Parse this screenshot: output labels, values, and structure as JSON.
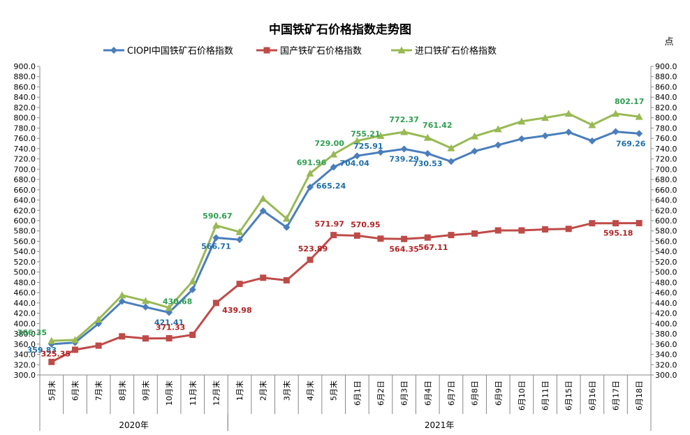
{
  "chart_data": {
    "type": "line",
    "title": "中国铁矿石价格指数走势图",
    "right_axis_unit": "点",
    "ylim": [
      300,
      900
    ],
    "ystep": 20,
    "grid": false,
    "legend_position": "top",
    "categories": [
      "5月末",
      "6月末",
      "7月末",
      "8月末",
      "9月末",
      "10月末",
      "11月末",
      "12月末",
      "1月末",
      "2月末",
      "3月末",
      "4月末",
      "5月末",
      "6月1日",
      "6月2日",
      "6月3日",
      "6月4日",
      "6月7日",
      "6月8日",
      "6月9日",
      "6月10日",
      "6月11日",
      "6月15日",
      "6月16日",
      "6月17日",
      "6月18日"
    ],
    "year_groups": [
      {
        "label": "2020年",
        "count": 8
      },
      {
        "label": "2021年",
        "count": 18
      }
    ],
    "series": [
      {
        "name": "CIOPI中国铁矿石价格指数",
        "color": "#4A7EBB",
        "marker": "diamond",
        "values": [
          359.83,
          363,
          400,
          443,
          432,
          421.41,
          466,
          566.71,
          563,
          619,
          587,
          665.24,
          704.04,
          725.91,
          733,
          739.29,
          730.53,
          715,
          735,
          747,
          759,
          765,
          772,
          755,
          773,
          769.26
        ]
      },
      {
        "name": "国产铁矿石价格指数",
        "color": "#BE4B48",
        "marker": "square",
        "values": [
          325.35,
          349,
          357,
          375,
          371,
          371.33,
          378,
          439.98,
          477,
          489,
          484,
          523.89,
          571.97,
          570.95,
          565,
          564.35,
          567.11,
          572,
          575,
          581,
          581,
          583,
          584,
          595,
          595,
          595.18
        ]
      },
      {
        "name": "进口铁矿石价格指数",
        "color": "#98B954",
        "marker": "triangle",
        "values": [
          366.35,
          368,
          408,
          455,
          444,
          430.68,
          482,
          590.67,
          578,
          643,
          604,
          691.96,
          729.0,
          755.21,
          765,
          772.37,
          761.42,
          741,
          764,
          778,
          793,
          800,
          808,
          786,
          808,
          802.17
        ]
      }
    ],
    "data_labels": [
      {
        "series": 0,
        "index": 0,
        "text": "359.83"
      },
      {
        "series": 0,
        "index": 5,
        "text": "421.41"
      },
      {
        "series": 0,
        "index": 7,
        "text": "566.71"
      },
      {
        "series": 0,
        "index": 11,
        "text": "665.24"
      },
      {
        "series": 0,
        "index": 12,
        "text": "704.04"
      },
      {
        "series": 0,
        "index": 13,
        "text": "725.91"
      },
      {
        "series": 0,
        "index": 15,
        "text": "739.29"
      },
      {
        "series": 0,
        "index": 16,
        "text": "730.53"
      },
      {
        "series": 0,
        "index": 25,
        "text": "769.26"
      },
      {
        "series": 1,
        "index": 0,
        "text": "325.35"
      },
      {
        "series": 1,
        "index": 5,
        "text": "371.33"
      },
      {
        "series": 1,
        "index": 7,
        "text": "439.98"
      },
      {
        "series": 1,
        "index": 11,
        "text": "523.89"
      },
      {
        "series": 1,
        "index": 12,
        "text": "571.97"
      },
      {
        "series": 1,
        "index": 13,
        "text": "570.95"
      },
      {
        "series": 1,
        "index": 15,
        "text": "564.35"
      },
      {
        "series": 1,
        "index": 16,
        "text": "567.11"
      },
      {
        "series": 1,
        "index": 25,
        "text": "595.18"
      },
      {
        "series": 2,
        "index": 0,
        "text": "366.35"
      },
      {
        "series": 2,
        "index": 5,
        "text": "430.68"
      },
      {
        "series": 2,
        "index": 7,
        "text": "590.67"
      },
      {
        "series": 2,
        "index": 11,
        "text": "691.96"
      },
      {
        "series": 2,
        "index": 12,
        "text": "729.00"
      },
      {
        "series": 2,
        "index": 13,
        "text": "755.21"
      },
      {
        "series": 2,
        "index": 15,
        "text": "772.37"
      },
      {
        "series": 2,
        "index": 16,
        "text": "761.42"
      },
      {
        "series": 2,
        "index": 25,
        "text": "802.17"
      }
    ]
  }
}
